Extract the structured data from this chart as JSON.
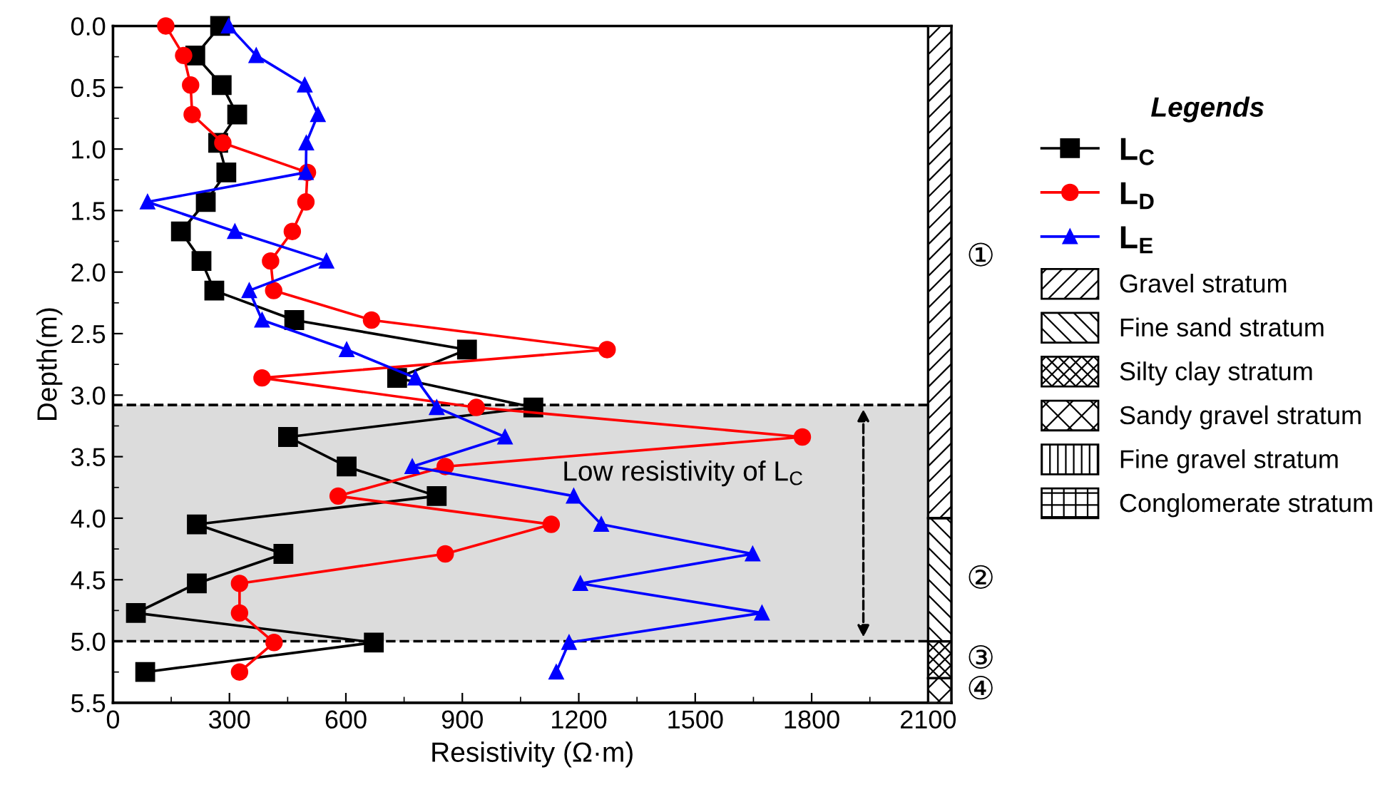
{
  "chart_data": {
    "type": "line",
    "xlabel": "Resistivity (Ω·m)",
    "ylabel": "Depth(m)",
    "legend_title": "Legends",
    "series": [
      {
        "name": "L$_{C}$",
        "color": "#000000",
        "marker": "square",
        "x": [
          276,
          212,
          280,
          320,
          271,
          292,
          239,
          175,
          228,
          261,
          467,
          912,
          732,
          1083,
          451,
          602,
          834,
          216,
          439,
          216,
          59,
          672,
          83
        ],
        "values": [
          0,
          0.24,
          0.48,
          0.72,
          0.95,
          1.19,
          1.43,
          1.67,
          1.91,
          2.15,
          2.39,
          2.63,
          2.86,
          3.1,
          3.34,
          3.58,
          3.82,
          4.05,
          4.29,
          4.53,
          4.77,
          5.01,
          5.25
        ]
      },
      {
        "name": "L$_{D}$",
        "color": "#ff0000",
        "marker": "circle",
        "x": [
          136,
          182,
          200,
          204,
          283,
          501,
          497,
          462,
          406,
          414,
          666,
          1273,
          384,
          936,
          1776,
          856,
          580,
          1129,
          856,
          326,
          326,
          415,
          326
        ],
        "values": [
          0,
          0.24,
          0.48,
          0.72,
          0.95,
          1.19,
          1.43,
          1.67,
          1.91,
          2.15,
          2.39,
          2.63,
          2.86,
          3.1,
          3.34,
          3.58,
          3.82,
          4.05,
          4.29,
          4.53,
          4.77,
          5.01,
          5.25
        ]
      },
      {
        "name": "L$_{E}$",
        "color": "#0000ff",
        "marker": "triangle",
        "x": [
          298,
          369,
          494,
          528,
          498,
          497,
          89,
          314,
          550,
          351,
          384,
          602,
          779,
          834,
          1010,
          771,
          1187,
          1258,
          1648,
          1204,
          1672,
          1175,
          1142
        ],
        "values": [
          0,
          0.24,
          0.48,
          0.72,
          0.95,
          1.19,
          1.43,
          1.67,
          1.91,
          2.15,
          2.39,
          2.63,
          2.86,
          3.1,
          3.34,
          3.58,
          3.82,
          4.05,
          4.29,
          4.53,
          4.77,
          5.01,
          5.25
        ]
      },
      {
        "type": "bar",
        "name": "①",
        "color": "#ffffff",
        "x": [
          2130
        ],
        "values": [
          4.0
        ]
      },
      {
        "type": "bar",
        "name": "②",
        "color": "#ffffff",
        "x": [
          2130
        ],
        "values": [
          1.0
        ]
      },
      {
        "type": "bar",
        "name": "③",
        "color": "#ffffff",
        "x": [
          2130
        ],
        "values": [
          0.3
        ]
      },
      {
        "type": "bar",
        "name": "④",
        "color": "#ffffff",
        "x": [
          2130
        ],
        "values": [
          0.2
        ]
      }
    ],
    "xlim": [
      0,
      2160
    ],
    "xticks": [
      0,
      300,
      600,
      900,
      1200,
      1500,
      1800,
      2100
    ],
    "ylim": [
      5.5,
      0
    ],
    "yticks": [
      {
        "value": 0,
        "label": "0.0"
      },
      0.5,
      {
        "value": 1,
        "label": "1.0"
      },
      1.5,
      {
        "value": 2,
        "label": "2.0"
      },
      2.5,
      {
        "value": 3,
        "label": "3.0"
      },
      3.5,
      {
        "value": 4,
        "label": "4.0"
      },
      4.5,
      {
        "value": 5,
        "label": "5.0"
      },
      5.5
    ],
    "bands": [
      {
        "axis": "y",
        "from": 3.08,
        "to": 5.0,
        "label": "Low resistivity of L$_{C}$",
        "color": "#dcdcdc"
      }
    ],
    "stacked": true,
    "ref_lines": [
      {
        "axis": "y",
        "value": 3.08,
        "color": "#000000",
        "line_style": "dashed"
      },
      {
        "axis": "y",
        "value": 5.0,
        "color": "#000000",
        "line_style": "dashed"
      }
    ],
    "annotations": [
      "Gravel stratum",
      "Fine sand stratum",
      "Silty clay stratum",
      "Sandy gravel stratum",
      "Fine gravel stratum",
      "Conglomerate stratum"
    ],
    "legend": "right",
    "grid": false,
    "line_style": "solid"
  }
}
